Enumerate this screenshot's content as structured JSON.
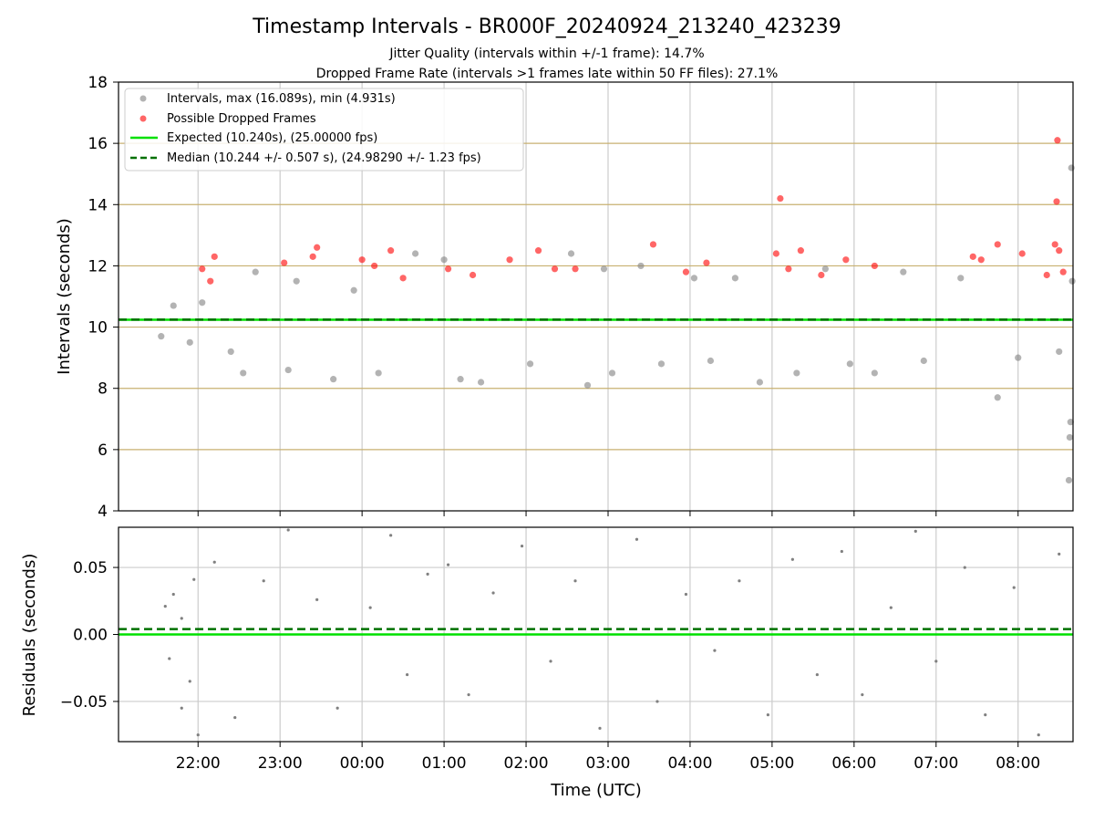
{
  "colors": {
    "intervals": "#808080",
    "dropped": "#ff0000",
    "expected": "#00e000",
    "median": "#007000",
    "hgrid": "#c8b070",
    "vgrid": "#cccccc"
  },
  "chart_data": [
    {
      "type": "scatter",
      "title": "Timestamp Intervals - BR000F_20240924_213240_423239",
      "subtitle": [
        "Jitter Quality (intervals within +/-1 frame): 14.7%",
        "Dropped Frame Rate (intervals >1 frames late within 50 FF files): 27.1%"
      ],
      "xlabel": "",
      "ylabel": "Intervals (seconds)",
      "x_unit": "hours since 00:00 UTC (2024-09-25); negative = previous day",
      "xlim": [
        -2.97,
        8.67
      ],
      "ylim": [
        4,
        18
      ],
      "yticks": [
        "4",
        "6",
        "8",
        "10",
        "12",
        "14",
        "16",
        "18"
      ],
      "grid": "on",
      "legend_position": "top-left",
      "legend": [
        "Intervals, max (16.089s), min (4.931s)",
        "Possible Dropped Frames",
        "Expected (10.240s), (25.00000 fps)",
        "Median (10.244 +/- 0.507 s), (24.98290 +/- 1.23 fps)"
      ],
      "series": [
        {
          "name": "Intervals, max (16.089s), min (4.931s)",
          "style": "points",
          "points": [
            [
              -2.45,
              9.7
            ],
            [
              -2.3,
              10.7
            ],
            [
              -2.1,
              9.5
            ],
            [
              -1.95,
              10.8
            ],
            [
              -1.6,
              9.2
            ],
            [
              -1.45,
              8.5
            ],
            [
              -1.3,
              11.8
            ],
            [
              -0.9,
              8.6
            ],
            [
              -0.8,
              11.5
            ],
            [
              -0.35,
              8.3
            ],
            [
              -0.1,
              11.2
            ],
            [
              0.2,
              8.5
            ],
            [
              0.65,
              12.4
            ],
            [
              1.0,
              12.2
            ],
            [
              1.2,
              8.3
            ],
            [
              1.45,
              8.2
            ],
            [
              2.05,
              8.8
            ],
            [
              2.55,
              12.4
            ],
            [
              2.75,
              8.1
            ],
            [
              2.95,
              11.9
            ],
            [
              3.05,
              8.5
            ],
            [
              3.4,
              12.0
            ],
            [
              3.65,
              8.8
            ],
            [
              4.05,
              11.6
            ],
            [
              4.25,
              8.9
            ],
            [
              4.55,
              11.6
            ],
            [
              4.85,
              8.2
            ],
            [
              5.3,
              8.5
            ],
            [
              5.65,
              11.9
            ],
            [
              5.95,
              8.8
            ],
            [
              6.25,
              8.5
            ],
            [
              6.6,
              11.8
            ],
            [
              6.85,
              8.9
            ],
            [
              7.3,
              11.6
            ],
            [
              7.75,
              7.7
            ],
            [
              8.0,
              9.0
            ],
            [
              8.5,
              9.2
            ],
            [
              8.62,
              5.0
            ],
            [
              8.63,
              6.4
            ],
            [
              8.64,
              6.9
            ],
            [
              8.65,
              15.2
            ],
            [
              8.66,
              11.5
            ]
          ]
        },
        {
          "name": "Possible Dropped Frames",
          "style": "points",
          "points": [
            [
              -1.95,
              11.9
            ],
            [
              -1.8,
              12.3
            ],
            [
              -1.85,
              11.5
            ],
            [
              -0.95,
              12.1
            ],
            [
              -0.55,
              12.6
            ],
            [
              -0.6,
              12.3
            ],
            [
              0.0,
              12.2
            ],
            [
              0.15,
              12.0
            ],
            [
              0.35,
              12.5
            ],
            [
              0.5,
              11.6
            ],
            [
              1.05,
              11.9
            ],
            [
              1.35,
              11.7
            ],
            [
              1.8,
              12.2
            ],
            [
              2.15,
              12.5
            ],
            [
              2.35,
              11.9
            ],
            [
              2.6,
              11.9
            ],
            [
              3.55,
              12.7
            ],
            [
              3.95,
              11.8
            ],
            [
              4.2,
              12.1
            ],
            [
              5.1,
              14.2
            ],
            [
              5.05,
              12.4
            ],
            [
              5.35,
              12.5
            ],
            [
              5.2,
              11.9
            ],
            [
              5.6,
              11.7
            ],
            [
              5.9,
              12.2
            ],
            [
              6.25,
              12.0
            ],
            [
              7.45,
              12.3
            ],
            [
              7.55,
              12.2
            ],
            [
              7.75,
              12.7
            ],
            [
              8.05,
              12.4
            ],
            [
              8.35,
              11.7
            ],
            [
              8.48,
              16.1
            ],
            [
              8.47,
              14.1
            ],
            [
              8.45,
              12.7
            ],
            [
              8.5,
              12.5
            ],
            [
              8.55,
              11.8
            ]
          ]
        },
        {
          "name": "Expected (10.240s), (25.00000 fps)",
          "style": "solid",
          "value": 10.24
        },
        {
          "name": "Median (10.244 +/- 0.507 s), (24.98290 +/- 1.23 fps)",
          "style": "dashed",
          "value": 10.244
        }
      ]
    },
    {
      "type": "scatter",
      "title": "",
      "xlabel": "Time (UTC)",
      "ylabel": "Residuals (seconds)",
      "x_unit": "hours since 00:00 UTC (2024-09-25); negative = previous day",
      "xlim": [
        -2.97,
        8.67
      ],
      "ylim": [
        -0.08,
        0.08
      ],
      "yticks": [
        "−0.05",
        "0.00",
        "0.05"
      ],
      "xticks": [
        {
          "x": -2,
          "label": "22:00"
        },
        {
          "x": -1,
          "label": "23:00"
        },
        {
          "x": 0,
          "label": "00:00"
        },
        {
          "x": 1,
          "label": "01:00"
        },
        {
          "x": 2,
          "label": "02:00"
        },
        {
          "x": 3,
          "label": "03:00"
        },
        {
          "x": 4,
          "label": "04:00"
        },
        {
          "x": 5,
          "label": "05:00"
        },
        {
          "x": 6,
          "label": "06:00"
        },
        {
          "x": 7,
          "label": "07:00"
        },
        {
          "x": 8,
          "label": "08:00"
        }
      ],
      "grid": "on",
      "series": [
        {
          "style": "points",
          "points": [
            [
              -2.4,
              0.021
            ],
            [
              -2.35,
              -0.018
            ],
            [
              -2.3,
              0.03
            ],
            [
              -2.2,
              0.012
            ],
            [
              -2.1,
              -0.035
            ],
            [
              -2.05,
              0.041
            ],
            [
              -2.2,
              -0.055
            ],
            [
              -2.0,
              -0.075
            ],
            [
              -1.8,
              0.054
            ],
            [
              -1.55,
              -0.062
            ],
            [
              -1.2,
              0.04
            ],
            [
              -0.9,
              0.078
            ],
            [
              -0.55,
              0.026
            ],
            [
              -0.3,
              -0.055
            ],
            [
              0.1,
              0.02
            ],
            [
              0.35,
              0.074
            ],
            [
              0.55,
              -0.03
            ],
            [
              0.8,
              0.045
            ],
            [
              1.05,
              0.052
            ],
            [
              1.3,
              -0.045
            ],
            [
              1.6,
              0.031
            ],
            [
              1.95,
              0.066
            ],
            [
              2.3,
              -0.02
            ],
            [
              2.6,
              0.04
            ],
            [
              2.9,
              -0.07
            ],
            [
              3.35,
              0.071
            ],
            [
              3.6,
              -0.05
            ],
            [
              3.95,
              0.03
            ],
            [
              4.3,
              -0.012
            ],
            [
              4.6,
              0.04
            ],
            [
              4.95,
              -0.06
            ],
            [
              5.25,
              0.056
            ],
            [
              5.55,
              -0.03
            ],
            [
              5.85,
              0.062
            ],
            [
              6.1,
              -0.045
            ],
            [
              6.45,
              0.02
            ],
            [
              6.75,
              0.077
            ],
            [
              7.0,
              -0.02
            ],
            [
              7.35,
              0.05
            ],
            [
              7.6,
              -0.06
            ],
            [
              7.95,
              0.035
            ],
            [
              8.25,
              -0.075
            ],
            [
              8.5,
              0.06
            ]
          ]
        },
        {
          "style": "solid",
          "value": 0.0
        },
        {
          "style": "dashed",
          "value": 0.004
        }
      ]
    }
  ]
}
